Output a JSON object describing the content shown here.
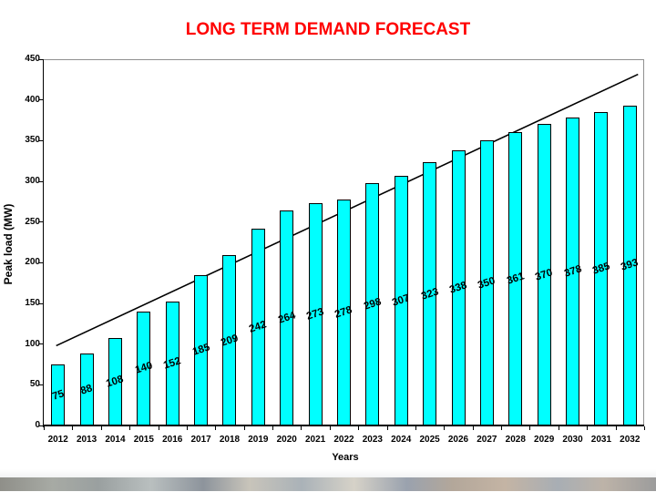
{
  "slide": {
    "title": "LONG TERM DEMAND FORECAST",
    "title_color": "#ff0000"
  },
  "chart_data": {
    "type": "bar",
    "title": "LONG TERM DEMAND FORECAST",
    "xlabel": "Years",
    "ylabel": "Peak load (MW)",
    "categories": [
      "2012",
      "2013",
      "2014",
      "2015",
      "2016",
      "2017",
      "2018",
      "2019",
      "2020",
      "2021",
      "2022",
      "2023",
      "2024",
      "2025",
      "2026",
      "2027",
      "2028",
      "2029",
      "2030",
      "2031",
      "2032"
    ],
    "values": [
      75,
      88,
      108,
      140,
      152,
      185,
      209,
      242,
      264,
      273,
      278,
      298,
      307,
      323,
      338,
      350,
      361,
      370,
      378,
      385,
      393
    ],
    "data_labels_shown": true,
    "bar_color": "#00ffff",
    "bar_border_color": "#000000",
    "ylim": [
      0,
      450
    ],
    "yticks": [
      0,
      50,
      100,
      150,
      200,
      250,
      300,
      350,
      400,
      450
    ],
    "grid": false,
    "legend": "none",
    "trendline": {
      "color": "#000000",
      "points": [
        {
          "year": "2012",
          "value": 98
        },
        {
          "year": "2032",
          "value": 427
        }
      ]
    }
  },
  "footer_photo_strip": {
    "colors": [
      "#8f8f89",
      "#a7aaa4",
      "#9aa0a0",
      "#b9bfbf",
      "#8d949c",
      "#c8c4ba",
      "#aab2b8",
      "#d6d2c8",
      "#9aa2ae",
      "#b3a79a",
      "#c4b4a4",
      "#a8aeb4",
      "#bdb3a8",
      "#9c9c9c"
    ]
  }
}
